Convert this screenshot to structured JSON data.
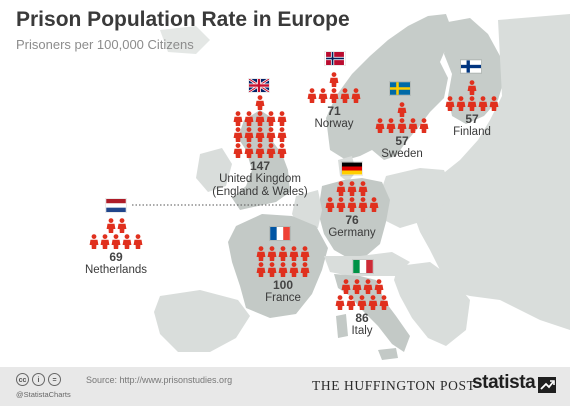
{
  "header": {
    "title": "Prison Population Rate in Europe",
    "subtitle": "Prisoners per 100,000 Citizens"
  },
  "countries": [
    {
      "id": "norway",
      "value": "71",
      "name": "Norway",
      "name_line2": "",
      "flag": "norway-flag"
    },
    {
      "id": "uk",
      "value": "147",
      "name": "United Kingdom",
      "name_line2": "(England & Wales)",
      "flag": "uk-flag"
    },
    {
      "id": "sweden",
      "value": "57",
      "name": "Sweden",
      "name_line2": "",
      "flag": "sweden-flag"
    },
    {
      "id": "finland",
      "value": "57",
      "name": "Finland",
      "name_line2": "",
      "flag": "finland-flag"
    },
    {
      "id": "netherlands",
      "value": "69",
      "name": "Netherlands",
      "name_line2": "",
      "flag": "netherlands-flag"
    },
    {
      "id": "germany",
      "value": "76",
      "name": "Germany",
      "name_line2": "",
      "flag": "germany-flag"
    },
    {
      "id": "france",
      "value": "100",
      "name": "France",
      "name_line2": "",
      "flag": "france-flag"
    },
    {
      "id": "italy",
      "value": "86",
      "name": "Italy",
      "name_line2": "",
      "flag": "italy-flag"
    }
  ],
  "footer": {
    "source": "Source: http://www.prisonstudies.org",
    "handle": "@StatistaCharts",
    "partner": "THE HUFFINGTON POST",
    "brand": "statista",
    "cc_icons": [
      "cc-icon",
      "by-icon",
      "nd-icon"
    ]
  },
  "colors": {
    "person": "#e0301e",
    "land": "#c3c9c6",
    "land_other": "#d8dcda",
    "sea": "#ffffff",
    "text": "#333333"
  }
}
